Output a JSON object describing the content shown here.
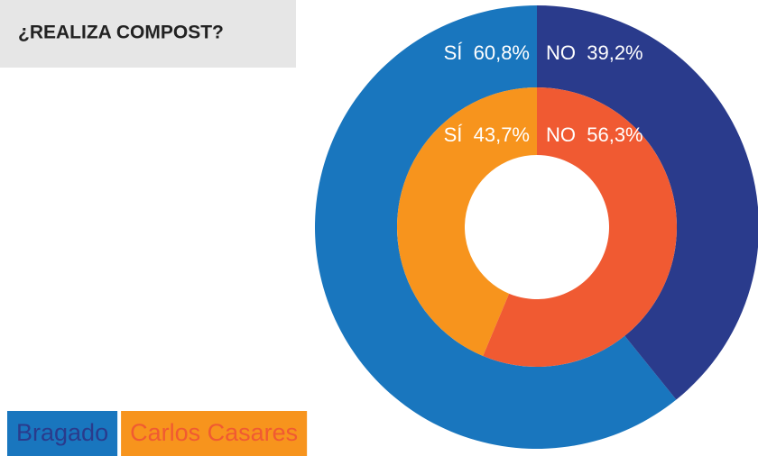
{
  "chart_data": {
    "type": "donut",
    "title": "¿REALIZA COMPOST?",
    "categories": [
      "SÍ",
      "NO"
    ],
    "series": [
      {
        "name": "Bragado",
        "color": "#1976be",
        "colors": [
          "#1976be",
          "#2a3b8c"
        ],
        "values": [
          60.8,
          39.2
        ],
        "value_labels": [
          "60,8%",
          "39,2%"
        ]
      },
      {
        "name": "Carlos Casares",
        "color": "#f7941d",
        "colors": [
          "#f7941d",
          "#f05a32"
        ],
        "values": [
          43.7,
          56.3
        ],
        "value_labels": [
          "43,7%",
          "56,3%"
        ]
      }
    ],
    "direction": "counterclockwise"
  }
}
